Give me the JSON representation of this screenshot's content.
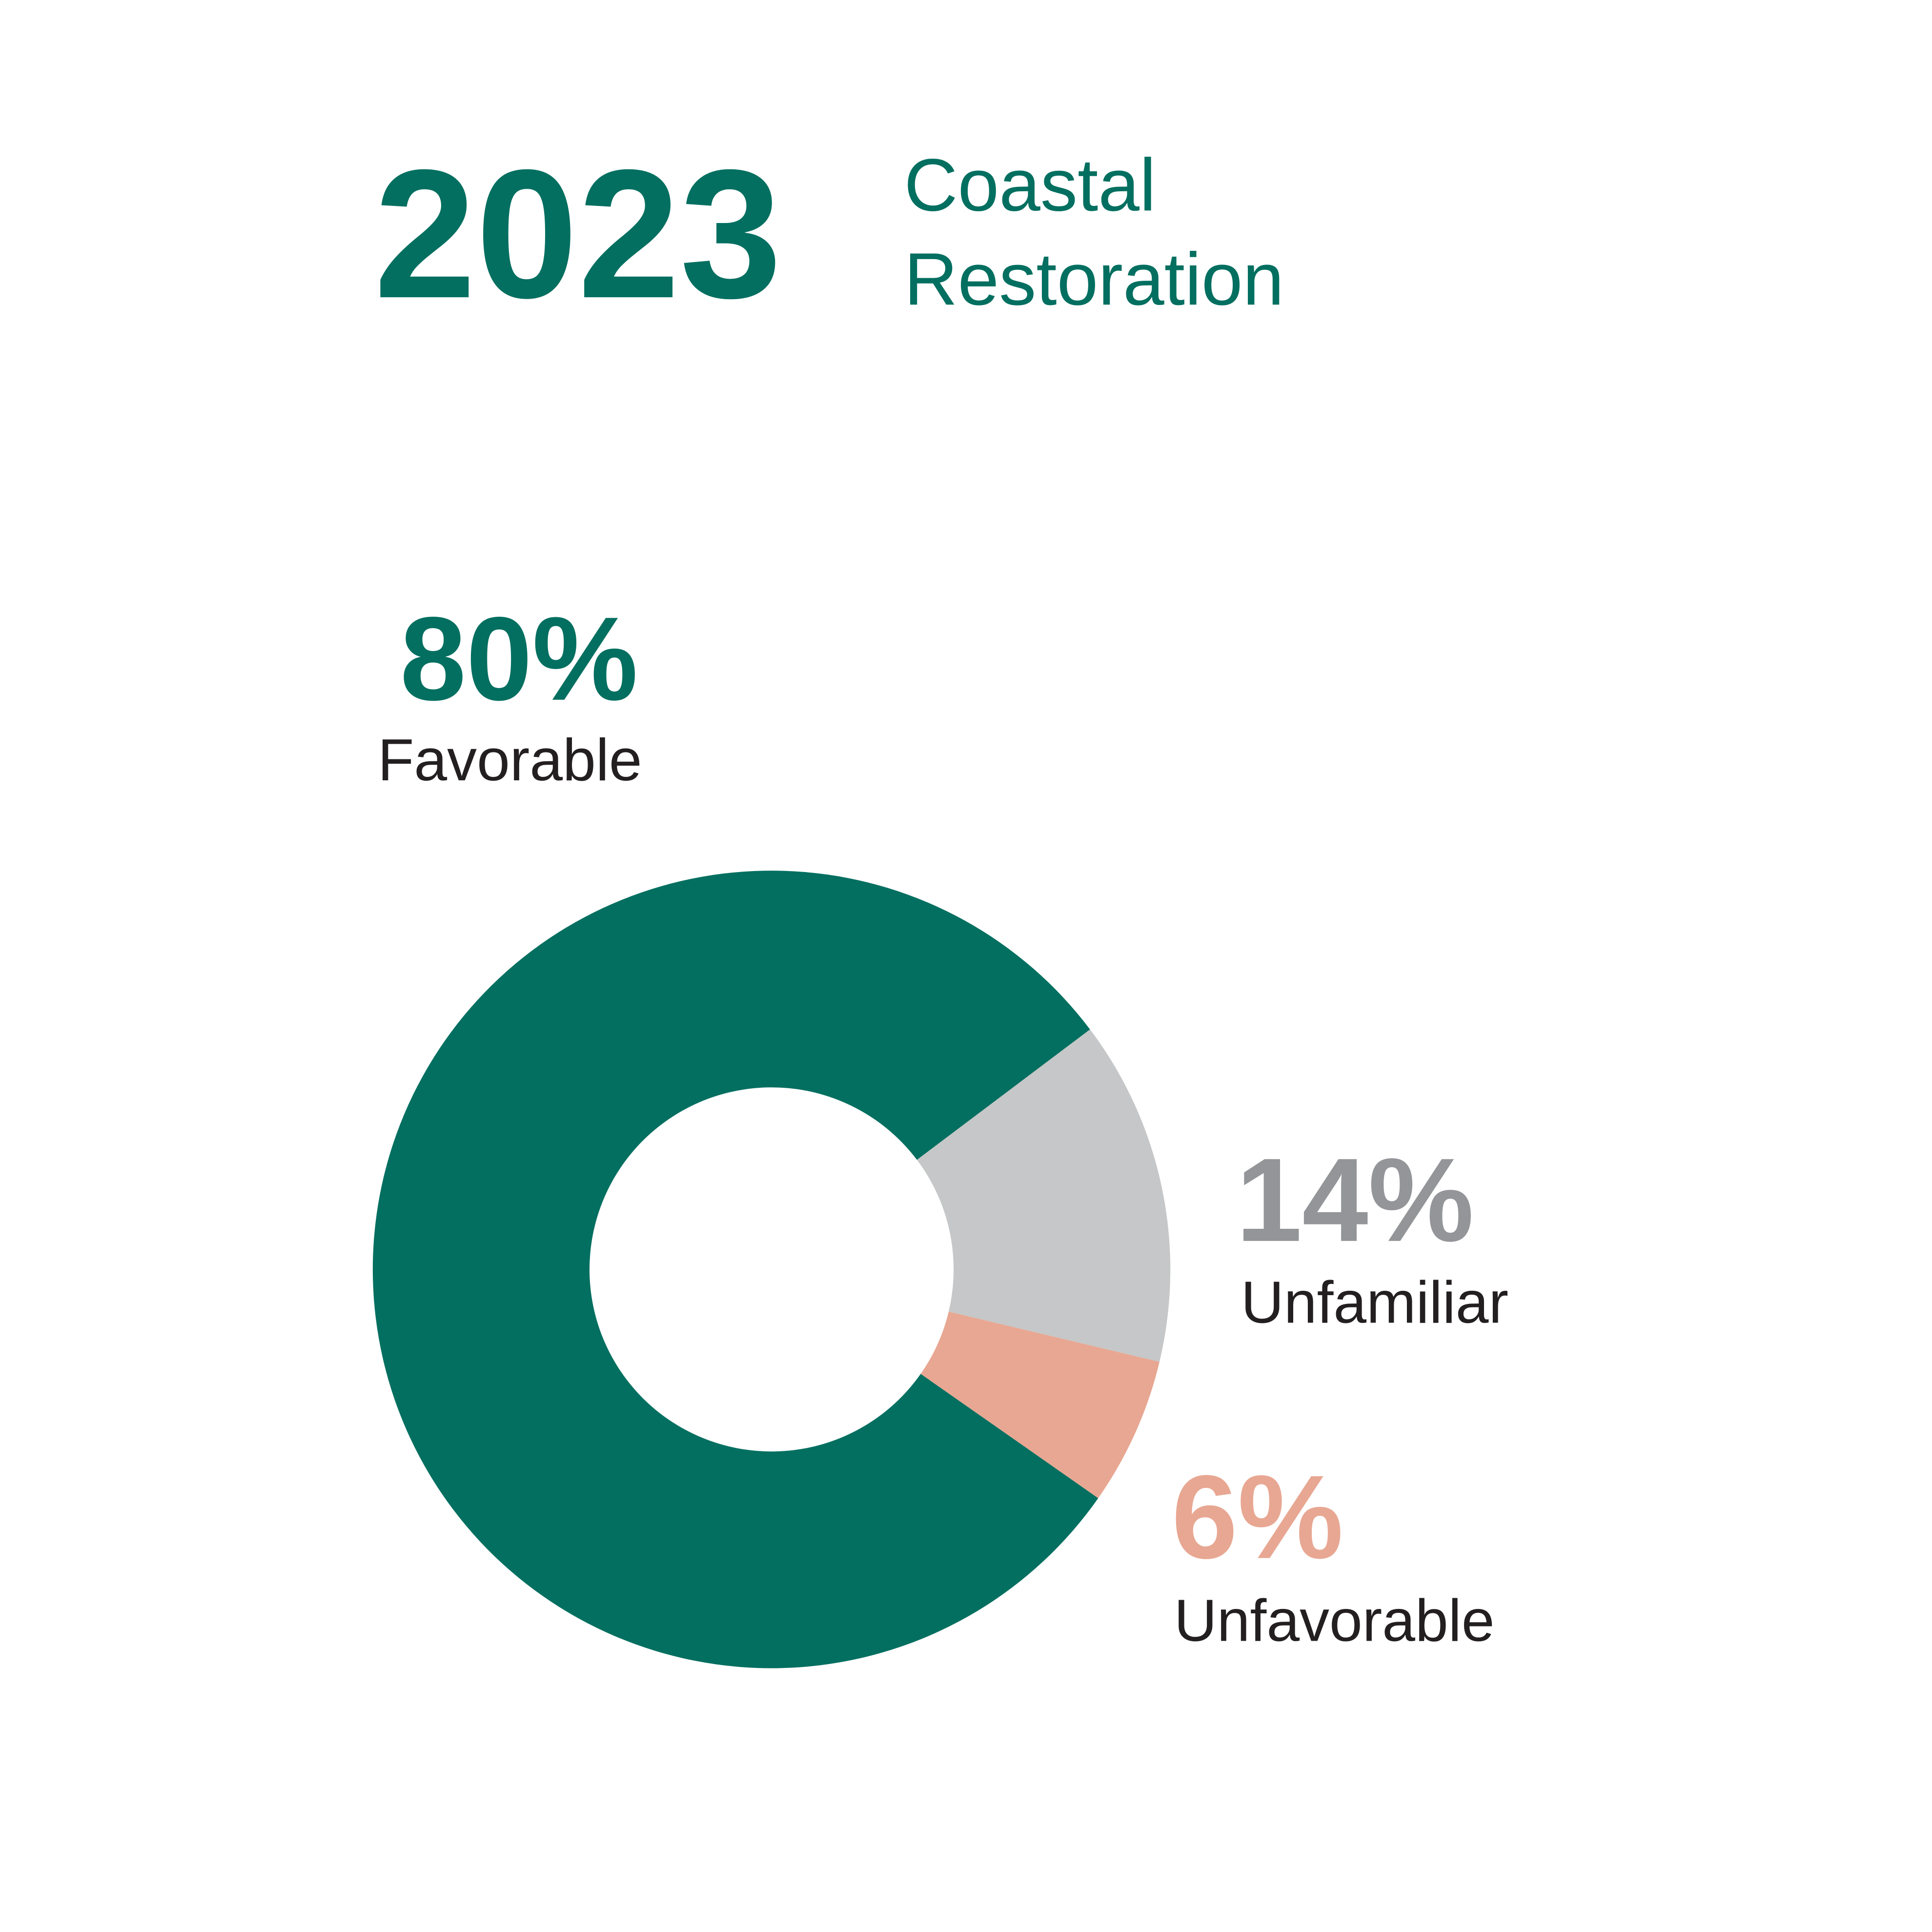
{
  "chart_data": {
    "type": "donut",
    "title": "2023",
    "subtitle": [
      "Coastal",
      "Restoration"
    ],
    "categories": [
      "Favorable",
      "Unfamiliar",
      "Unfavorable"
    ],
    "values": [
      80,
      14,
      6
    ],
    "value_labels": [
      "80%",
      "14%",
      "6%"
    ],
    "colors": [
      "#036f60",
      "#c6c7c8",
      "#e8a792"
    ],
    "value_label_colors": [
      "#036f60",
      "#939598",
      "#e8a792"
    ]
  }
}
